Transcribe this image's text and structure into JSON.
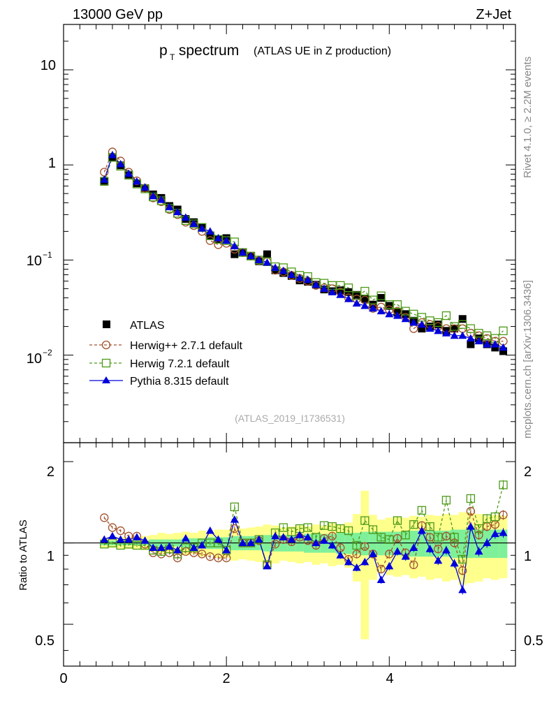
{
  "header": {
    "left": "13000 GeV pp",
    "right": "Z+Jet"
  },
  "title": {
    "main": "p",
    "sub": "T",
    "rest": " spectrum",
    "note": "(ATLAS UE in Z production)"
  },
  "side_labels": {
    "top": "Rivet 4.1.0, ≥ 2.2M events",
    "bottom": "mcplots.cern.ch [arXiv:1306.3436]"
  },
  "watermark": "(ATLAS_2019_I1736531)",
  "ratio_ylabel": "Ratio to ATLAS",
  "colors": {
    "data": "#000000",
    "herwigpp": "#a0522d",
    "herwig7": "#4d9a18",
    "pythia": "#0000dd",
    "band_green": "#7ff09a",
    "band_yellow": "#ffff8c"
  },
  "chart_data": [
    {
      "id": "main",
      "type": "scatter",
      "yscale": "log",
      "xlim": [
        0,
        5.55
      ],
      "ylim": [
        0.0012,
        30
      ],
      "ytick_labels": [
        {
          "value": 10,
          "base": "10",
          "exp": ""
        },
        {
          "value": 1,
          "base": "1",
          "exp": ""
        },
        {
          "value": 0.1,
          "base": "10",
          "exp": "−1"
        },
        {
          "value": 0.01,
          "base": "10",
          "exp": "−2"
        }
      ],
      "x": [
        0.5,
        0.6,
        0.7,
        0.8,
        0.9,
        1.0,
        1.1,
        1.2,
        1.3,
        1.4,
        1.5,
        1.6,
        1.7,
        1.8,
        1.9,
        2.0,
        2.1,
        2.2,
        2.3,
        2.4,
        2.5,
        2.6,
        2.7,
        2.8,
        2.9,
        3.0,
        3.1,
        3.2,
        3.3,
        3.4,
        3.5,
        3.6,
        3.7,
        3.8,
        3.9,
        4.0,
        4.1,
        4.2,
        4.3,
        4.4,
        4.5,
        4.6,
        4.7,
        4.8,
        4.9,
        5.0,
        5.1,
        5.2,
        5.3,
        5.4
      ],
      "series": [
        {
          "name": "ATLAS",
          "marker": "square",
          "values": [
            0.68,
            1.2,
            0.99,
            0.79,
            0.64,
            0.57,
            0.49,
            0.45,
            0.37,
            0.34,
            0.27,
            0.25,
            0.22,
            0.18,
            0.165,
            0.17,
            0.115,
            0.12,
            0.11,
            0.097,
            0.115,
            0.078,
            0.073,
            0.068,
            0.061,
            0.059,
            0.055,
            0.049,
            0.047,
            0.048,
            0.046,
            0.043,
            0.039,
            0.034,
            0.04,
            0.033,
            0.028,
            0.027,
            0.023,
            0.019,
            0.02,
            0.021,
            0.018,
            0.019,
            0.024,
            0.013,
            0.015,
            0.013,
            0.012,
            0.011
          ]
        },
        {
          "name": "Herwig++ 2.7.1 default",
          "marker": "circle",
          "values": [
            0.84,
            1.37,
            1.1,
            0.84,
            0.68,
            0.57,
            0.45,
            0.41,
            0.34,
            0.3,
            0.25,
            0.23,
            0.2,
            0.16,
            0.145,
            0.15,
            0.13,
            0.12,
            0.11,
            0.099,
            0.096,
            0.078,
            0.075,
            0.069,
            0.064,
            0.06,
            0.054,
            0.051,
            0.05,
            0.046,
            0.04,
            0.039,
            0.038,
            0.031,
            0.032,
            0.03,
            0.029,
            0.025,
            0.019,
            0.022,
            0.021,
            0.02,
            0.019,
            0.019,
            0.019,
            0.017,
            0.016,
            0.015,
            0.014,
            0.014
          ]
        },
        {
          "name": "Herwig 7.2.1 default",
          "marker": "open-square",
          "values": [
            0.67,
            1.2,
            0.97,
            0.78,
            0.63,
            0.56,
            0.46,
            0.42,
            0.35,
            0.31,
            0.26,
            0.24,
            0.22,
            0.18,
            0.165,
            0.16,
            0.155,
            0.12,
            0.11,
            0.1,
            0.096,
            0.085,
            0.083,
            0.075,
            0.069,
            0.067,
            0.058,
            0.057,
            0.054,
            0.054,
            0.051,
            0.042,
            0.047,
            0.038,
            0.042,
            0.034,
            0.034,
            0.029,
            0.027,
            0.025,
            0.023,
            0.022,
            0.026,
            0.02,
            0.021,
            0.019,
            0.017,
            0.016,
            0.015,
            0.018
          ]
        },
        {
          "name": "Pythia 8.315 default",
          "marker": "triangle",
          "values": [
            0.7,
            1.27,
            1.02,
            0.81,
            0.67,
            0.58,
            0.47,
            0.43,
            0.36,
            0.32,
            0.28,
            0.24,
            0.215,
            0.2,
            0.17,
            0.16,
            0.14,
            0.12,
            0.11,
            0.1,
            0.094,
            0.083,
            0.077,
            0.07,
            0.065,
            0.062,
            0.055,
            0.05,
            0.046,
            0.043,
            0.039,
            0.035,
            0.033,
            0.031,
            0.029,
            0.027,
            0.026,
            0.024,
            0.022,
            0.021,
            0.019,
            0.018,
            0.017,
            0.016,
            0.016,
            0.015,
            0.014,
            0.013,
            0.013,
            0.012
          ]
        }
      ],
      "legend": {
        "placement": "center-left",
        "entries": [
          "ATLAS",
          "Herwig++ 2.7.1 default",
          "Herwig 7.2.1 default",
          "Pythia 8.315 default"
        ]
      }
    },
    {
      "id": "ratio",
      "type": "line",
      "ylabel": "Ratio to ATLAS",
      "xlim": [
        0,
        5.55
      ],
      "ylim": [
        0.35,
        2.35
      ],
      "xtick_labels": [
        {
          "value": 0,
          "label": "0"
        },
        {
          "value": 2,
          "label": "2"
        },
        {
          "value": 4,
          "label": "4"
        }
      ],
      "ytick_labels": [
        {
          "value": 2,
          "label": "2"
        },
        {
          "value": 1,
          "label": "1"
        },
        {
          "value": 0.5,
          "label": "0.5"
        }
      ],
      "x": [
        0.5,
        0.6,
        0.7,
        0.8,
        0.9,
        1.0,
        1.1,
        1.2,
        1.3,
        1.4,
        1.5,
        1.6,
        1.7,
        1.8,
        1.9,
        2.0,
        2.1,
        2.2,
        2.3,
        2.4,
        2.5,
        2.6,
        2.7,
        2.8,
        2.9,
        3.0,
        3.1,
        3.2,
        3.3,
        3.4,
        3.5,
        3.6,
        3.7,
        3.8,
        3.9,
        4.0,
        4.1,
        4.2,
        4.3,
        4.4,
        4.5,
        4.6,
        4.7,
        4.8,
        4.9,
        5.0,
        5.1,
        5.2,
        5.3,
        5.4
      ],
      "band_green": [
        0.02,
        0.02,
        0.02,
        0.02,
        0.02,
        0.02,
        0.03,
        0.03,
        0.03,
        0.03,
        0.04,
        0.04,
        0.04,
        0.05,
        0.05,
        0.05,
        0.06,
        0.06,
        0.06,
        0.06,
        0.07,
        0.07,
        0.07,
        0.07,
        0.07,
        0.08,
        0.08,
        0.08,
        0.08,
        0.09,
        0.09,
        0.09,
        0.1,
        0.1,
        0.1,
        0.1,
        0.1,
        0.11,
        0.11,
        0.11,
        0.11,
        0.11,
        0.11,
        0.12,
        0.12,
        0.12,
        0.12,
        0.12,
        0.12,
        0.12
      ],
      "band_yellow": [
        0.04,
        0.04,
        0.05,
        0.05,
        0.05,
        0.06,
        0.07,
        0.09,
        0.08,
        0.09,
        0.1,
        0.09,
        0.11,
        0.1,
        0.12,
        0.12,
        0.14,
        0.13,
        0.14,
        0.15,
        0.17,
        0.16,
        0.14,
        0.15,
        0.16,
        0.15,
        0.17,
        0.16,
        0.18,
        0.17,
        0.19,
        0.28,
        0.56,
        0.27,
        0.22,
        0.24,
        0.25,
        0.24,
        0.26,
        0.25,
        0.27,
        0.26,
        0.28,
        0.27,
        0.3,
        0.29,
        0.28,
        0.26,
        0.27,
        0.26
      ],
      "series": [
        {
          "name": "Herwig++ 2.7.1 default",
          "marker": "circle",
          "values": [
            1.24,
            1.14,
            1.11,
            1.06,
            1.06,
            0.99,
            0.92,
            0.91,
            0.92,
            0.88,
            0.93,
            0.92,
            0.91,
            0.89,
            0.88,
            0.88,
            1.13,
            1.0,
            1.0,
            1.02,
            0.83,
            0.99,
            1.03,
            1.01,
            1.05,
            1.02,
            0.98,
            1.04,
            1.06,
            0.96,
            0.87,
            0.91,
            0.97,
            0.91,
            0.8,
            0.91,
            1.04,
            0.92,
            0.83,
            1.16,
            1.05,
            0.95,
            1.06,
            1.0,
            0.79,
            1.31,
            1.07,
            1.15,
            1.17,
            1.27
          ]
        },
        {
          "name": "Herwig 7.2.1 default",
          "marker": "open-square",
          "values": [
            0.99,
            1.0,
            0.98,
            0.99,
            0.98,
            0.98,
            0.94,
            0.93,
            0.95,
            0.91,
            0.96,
            0.96,
            1.0,
            1.0,
            1.0,
            0.94,
            1.36,
            1.0,
            1.0,
            1.03,
            0.83,
            1.09,
            1.14,
            1.1,
            1.13,
            1.14,
            1.05,
            1.16,
            1.15,
            1.13,
            1.11,
            0.98,
            1.21,
            1.12,
            1.05,
            1.03,
            1.21,
            1.07,
            1.17,
            1.32,
            1.15,
            1.05,
            1.44,
            1.05,
            0.87,
            1.46,
            1.13,
            1.23,
            1.25,
            1.64
          ]
        },
        {
          "name": "Pythia 8.315 default",
          "marker": "triangle",
          "values": [
            1.03,
            1.06,
            1.03,
            1.03,
            1.05,
            1.02,
            0.96,
            0.96,
            0.97,
            0.94,
            1.04,
            0.96,
            0.98,
            1.11,
            1.03,
            0.94,
            1.22,
            1.0,
            1.0,
            1.03,
            0.82,
            1.06,
            1.05,
            1.03,
            1.07,
            1.05,
            1.0,
            1.02,
            0.98,
            0.9,
            0.85,
            0.81,
            0.85,
            0.91,
            0.73,
            0.82,
            0.93,
            0.89,
            0.96,
            1.11,
            0.95,
            0.86,
            0.94,
            0.84,
            0.67,
            1.15,
            0.93,
            1.0,
            1.08,
            1.09
          ]
        }
      ]
    }
  ]
}
